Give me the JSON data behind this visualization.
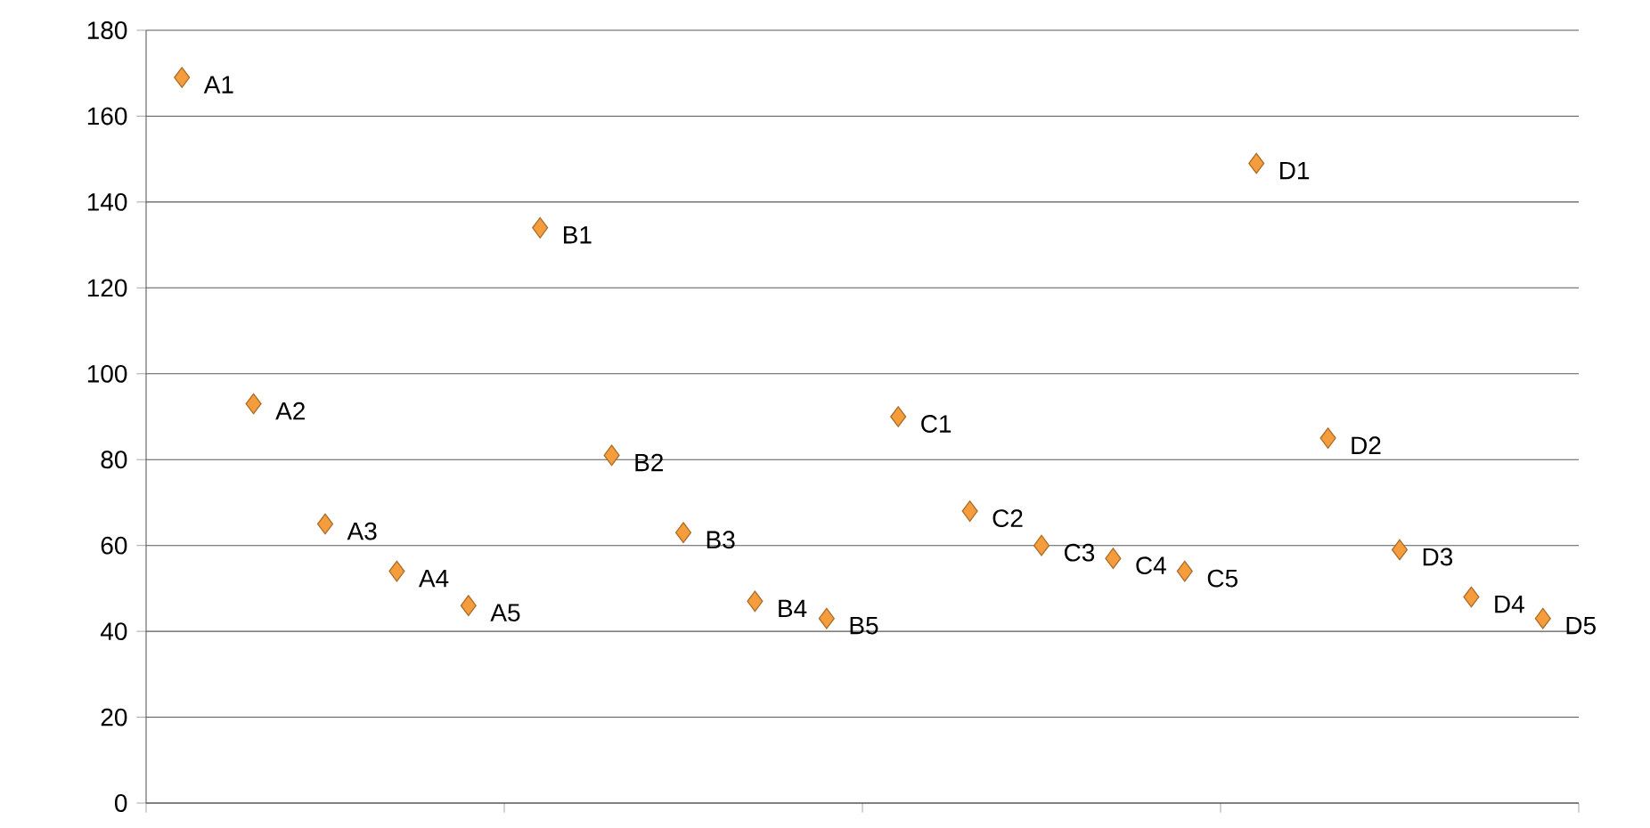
{
  "chart_data": {
    "type": "scatter",
    "categories": [
      null,
      null,
      null,
      null,
      null,
      null,
      null,
      null,
      null,
      null,
      null,
      null,
      null,
      null,
      null,
      null,
      null,
      null,
      null,
      null
    ],
    "values": [
      169,
      93,
      65,
      54,
      46,
      134,
      81,
      63,
      47,
      43,
      90,
      68,
      60,
      57,
      54,
      149,
      85,
      59,
      48,
      43
    ],
    "value_labels": [
      "A1",
      "A2",
      "A3",
      "A4",
      "A5",
      "B1",
      "B2",
      "B3",
      "B4",
      "B5",
      "C1",
      "C2",
      "C3",
      "C4",
      "C5",
      "D1",
      "D2",
      "D3",
      "D4",
      "D5"
    ],
    "color": "#f59d3d",
    "marker": "diamond",
    "ylim": [
      0,
      180
    ],
    "yticks": [
      0,
      20,
      40,
      60,
      80,
      100,
      120,
      140,
      160,
      180
    ],
    "grid": "y",
    "tick_labels": "y"
  }
}
